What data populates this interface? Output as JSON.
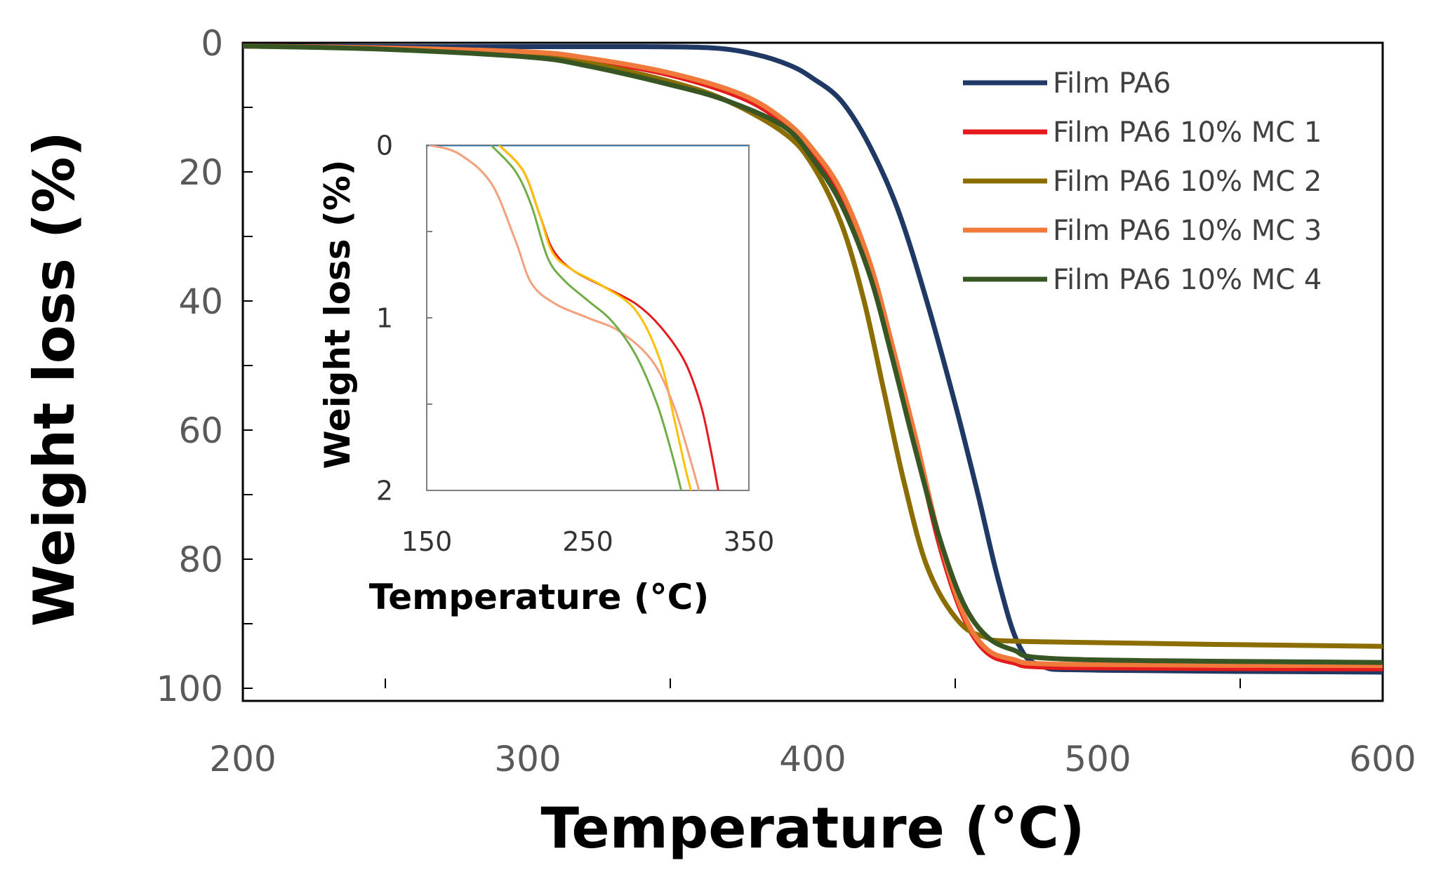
{
  "chart_data": [
    {
      "type": "line",
      "role": "main",
      "xlabel": "Temperature (°C)",
      "ylabel": "Weight loss (%)",
      "xlim": [
        200,
        600
      ],
      "ylim": [
        0,
        100
      ],
      "y_inverted": true,
      "x_ticks": [
        200,
        300,
        400,
        500,
        600
      ],
      "x_minor_ticks": [
        250,
        350,
        450,
        550
      ],
      "y_ticks": [
        0,
        20,
        40,
        60,
        80,
        100
      ],
      "y_minor_ticks": [
        10,
        30,
        50,
        70,
        90
      ],
      "legend_position": "top-right",
      "series": [
        {
          "name": "Film PA6",
          "color": "#1f3864",
          "points": [
            [
              200,
              0.5
            ],
            [
              250,
              0.6
            ],
            [
              300,
              0.6
            ],
            [
              340,
              0.6
            ],
            [
              365,
              0.8
            ],
            [
              380,
              1.8
            ],
            [
              392,
              3.5
            ],
            [
              400,
              5.5
            ],
            [
              410,
              9
            ],
            [
              420,
              16
            ],
            [
              430,
              26
            ],
            [
              440,
              40
            ],
            [
              450,
              56
            ],
            [
              458,
              70
            ],
            [
              465,
              83
            ],
            [
              472,
              93
            ],
            [
              480,
              96.5
            ],
            [
              500,
              97.2
            ],
            [
              600,
              97.5
            ]
          ]
        },
        {
          "name": "Film PA6 10% MC 1",
          "color": "#e41a1c",
          "points": [
            [
              200,
              0.5
            ],
            [
              250,
              0.8
            ],
            [
              300,
              1.5
            ],
            [
              320,
              2.5
            ],
            [
              350,
              5
            ],
            [
              375,
              8.5
            ],
            [
              390,
              12.5
            ],
            [
              400,
              17
            ],
            [
              410,
              24
            ],
            [
              420,
              35
            ],
            [
              428,
              48
            ],
            [
              436,
              62
            ],
            [
              444,
              77
            ],
            [
              452,
              88
            ],
            [
              460,
              94
            ],
            [
              470,
              96
            ],
            [
              490,
              96.8
            ],
            [
              600,
              97
            ]
          ]
        },
        {
          "name": "Film PA6 10% MC 2",
          "color": "#8b6d00",
          "points": [
            [
              200,
              0.5
            ],
            [
              250,
              0.9
            ],
            [
              300,
              2
            ],
            [
              320,
              3
            ],
            [
              350,
              6
            ],
            [
              370,
              9
            ],
            [
              390,
              14
            ],
            [
              400,
              19
            ],
            [
              410,
              28
            ],
            [
              418,
              40
            ],
            [
              425,
              54
            ],
            [
              432,
              68
            ],
            [
              440,
              81
            ],
            [
              450,
              89
            ],
            [
              460,
              92
            ],
            [
              480,
              92.8
            ],
            [
              600,
              93.5
            ]
          ]
        },
        {
          "name": "Film PA6 10% MC 3",
          "color": "#f07a3c",
          "points": [
            [
              200,
              0.5
            ],
            [
              250,
              0.8
            ],
            [
              300,
              1.4
            ],
            [
              320,
              2.3
            ],
            [
              350,
              4.7
            ],
            [
              375,
              8
            ],
            [
              390,
              12
            ],
            [
              400,
              16.5
            ],
            [
              410,
              23
            ],
            [
              420,
              34
            ],
            [
              428,
              47
            ],
            [
              436,
              61
            ],
            [
              444,
              76
            ],
            [
              452,
              87.5
            ],
            [
              460,
              93.5
            ],
            [
              470,
              95.5
            ],
            [
              490,
              96.3
            ],
            [
              600,
              96.5
            ]
          ]
        },
        {
          "name": "Film PA6 10% MC 4",
          "color": "#375623",
          "points": [
            [
              200,
              0.5
            ],
            [
              250,
              1
            ],
            [
              300,
              2.2
            ],
            [
              320,
              3.5
            ],
            [
              350,
              6.5
            ],
            [
              370,
              9
            ],
            [
              390,
              13
            ],
            [
              400,
              18
            ],
            [
              410,
              25
            ],
            [
              420,
              36
            ],
            [
              428,
              49
            ],
            [
              436,
              63
            ],
            [
              444,
              76
            ],
            [
              452,
              86
            ],
            [
              460,
              91.5
            ],
            [
              470,
              94
            ],
            [
              490,
              95.5
            ],
            [
              600,
              96
            ]
          ]
        }
      ]
    },
    {
      "type": "line",
      "role": "inset",
      "xlabel": "Temperature (°C)",
      "ylabel": "Weight loss (%)",
      "xlim": [
        150,
        350
      ],
      "ylim": [
        0,
        2
      ],
      "y_inverted": true,
      "x_ticks": [
        150,
        250,
        350
      ],
      "y_ticks": [
        0,
        1,
        2
      ],
      "y_minor_ticks": [
        0.5,
        1.5
      ],
      "series": [
        {
          "name": "PA6",
          "color": "#2e75b6",
          "points": [
            [
              150,
              0
            ],
            [
              349,
              0
            ]
          ]
        },
        {
          "name": "MC 1",
          "color": "#e41a1c",
          "points": [
            [
              195,
              0
            ],
            [
              210,
              0.15
            ],
            [
              220,
              0.4
            ],
            [
              228,
              0.6
            ],
            [
              240,
              0.72
            ],
            [
              260,
              0.82
            ],
            [
              280,
              0.92
            ],
            [
              295,
              1.05
            ],
            [
              310,
              1.25
            ],
            [
              320,
              1.5
            ],
            [
              326,
              1.75
            ],
            [
              331,
              2
            ]
          ]
        },
        {
          "name": "MC 2",
          "color": "#ffc000",
          "points": [
            [
              195,
              0
            ],
            [
              210,
              0.15
            ],
            [
              220,
              0.4
            ],
            [
              228,
              0.62
            ],
            [
              240,
              0.72
            ],
            [
              260,
              0.82
            ],
            [
              280,
              0.96
            ],
            [
              295,
              1.25
            ],
            [
              304,
              1.6
            ],
            [
              310,
              1.85
            ],
            [
              314,
              2
            ]
          ]
        },
        {
          "name": "MC 3",
          "color": "#f4a07c",
          "points": [
            [
              152,
              0
            ],
            [
              170,
              0.05
            ],
            [
              190,
              0.22
            ],
            [
              205,
              0.55
            ],
            [
              215,
              0.8
            ],
            [
              230,
              0.92
            ],
            [
              250,
              1
            ],
            [
              270,
              1.08
            ],
            [
              290,
              1.25
            ],
            [
              303,
              1.5
            ],
            [
              313,
              1.8
            ],
            [
              319,
              2
            ]
          ]
        },
        {
          "name": "MC 4",
          "color": "#70ad47",
          "points": [
            [
              190,
              0
            ],
            [
              205,
              0.15
            ],
            [
              215,
              0.35
            ],
            [
              225,
              0.65
            ],
            [
              235,
              0.78
            ],
            [
              250,
              0.9
            ],
            [
              265,
              1.02
            ],
            [
              280,
              1.22
            ],
            [
              293,
              1.5
            ],
            [
              302,
              1.78
            ],
            [
              308,
              2
            ]
          ]
        }
      ]
    }
  ]
}
